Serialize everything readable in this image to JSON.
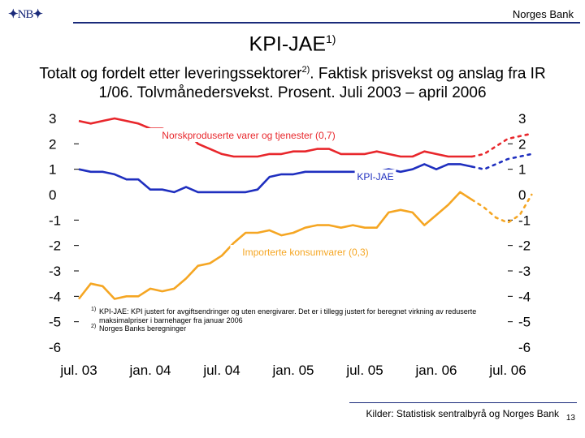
{
  "header": {
    "logo_text": "NB",
    "org_name": "Norges Bank",
    "title": "KPI-JAE",
    "title_sup": "1)",
    "subtitle_part1": "Totalt og fordelt etter leveringssektorer",
    "subtitle_sup": "2)",
    "subtitle_part2": ". Faktisk prisvekst og anslag fra IR 1/06. Tolvmånedersvekst. Prosent. Juli 2003 – april 2006"
  },
  "footnotes": [
    {
      "marker": "1)",
      "text": "KPI-JAE: KPI justert for avgiftsendringer og uten energivarer. Det er i tillegg justert for beregnet virkning av reduserte maksimalpriser i barnehager fra januar 2006"
    },
    {
      "marker": "2)",
      "text": "Norges Banks beregninger"
    }
  ],
  "source": "Kilder: Statistisk sentralbyrå og Norges Bank",
  "page_number": "13",
  "colors": {
    "norsk": "#e8272c",
    "kpi": "#1f2fbf",
    "import": "#f5a623",
    "brand": "#1a2a7a"
  },
  "chart_data": {
    "type": "line",
    "title": "KPI-JAE",
    "xlabel": "",
    "ylabel": "Prosent",
    "ylim": [
      -6,
      3
    ],
    "yticks": [
      "3",
      "2",
      "1",
      "0",
      "-1",
      "-2",
      "-3",
      "-4",
      "-5",
      "-6"
    ],
    "ytick_values": [
      3,
      2,
      1,
      0,
      -1,
      -2,
      -3,
      -4,
      -5,
      -6
    ],
    "xtick_labels": [
      "jul. 03",
      "jan. 04",
      "jul. 04",
      "jan. 05",
      "jul. 05",
      "jan. 06",
      "jul. 06"
    ],
    "x_start": "2003-07",
    "x_end": "2006-07",
    "series": [
      {
        "name": "Norskproduserte varer og tjenester (0,7)",
        "key": "norsk",
        "actual": [
          2.9,
          2.8,
          2.9,
          3.0,
          2.9,
          2.8,
          2.6,
          2.6,
          2.4,
          2.5,
          2.0,
          1.8,
          1.6,
          1.5,
          1.5,
          1.5,
          1.6,
          1.6,
          1.7,
          1.7,
          1.8,
          1.8,
          1.6,
          1.6,
          1.6,
          1.7,
          1.6,
          1.5,
          1.5,
          1.7,
          1.6,
          1.5,
          1.5,
          1.5
        ],
        "forecast": [
          1.5,
          1.6,
          1.9,
          2.2,
          2.3,
          2.4
        ]
      },
      {
        "name": "KPI-JAE",
        "key": "kpi",
        "actual": [
          1.0,
          0.9,
          0.9,
          0.8,
          0.6,
          0.6,
          0.2,
          0.2,
          0.1,
          0.3,
          0.1,
          0.1,
          0.1,
          0.1,
          0.1,
          0.2,
          0.7,
          0.8,
          0.8,
          0.9,
          0.9,
          0.9,
          0.9,
          0.9,
          0.9,
          0.9,
          1.0,
          0.9,
          1.0,
          1.2,
          1.0,
          1.2,
          1.2,
          1.1
        ],
        "forecast": [
          1.1,
          1.0,
          1.2,
          1.4,
          1.5,
          1.6
        ]
      },
      {
        "name": "Importerte konsumvarer (0,3)",
        "key": "import",
        "actual": [
          -4.1,
          -3.5,
          -3.6,
          -4.1,
          -4.0,
          -4.0,
          -3.7,
          -3.8,
          -3.7,
          -3.3,
          -2.8,
          -2.7,
          -2.4,
          -1.9,
          -1.5,
          -1.5,
          -1.4,
          -1.6,
          -1.5,
          -1.3,
          -1.2,
          -1.2,
          -1.3,
          -1.2,
          -1.3,
          -1.3,
          -0.7,
          -0.6,
          -0.7,
          -1.2,
          -0.8,
          -0.4,
          0.1,
          -0.2
        ],
        "forecast": [
          -0.2,
          -0.5,
          -0.9,
          -1.1,
          -0.8,
          0.0
        ]
      }
    ],
    "annotations": {
      "norsk": "Norskproduserte varer og tjenester (0,7)",
      "kpi": "KPI-JAE",
      "import": "Importerte konsumvarer (0,3)"
    }
  }
}
